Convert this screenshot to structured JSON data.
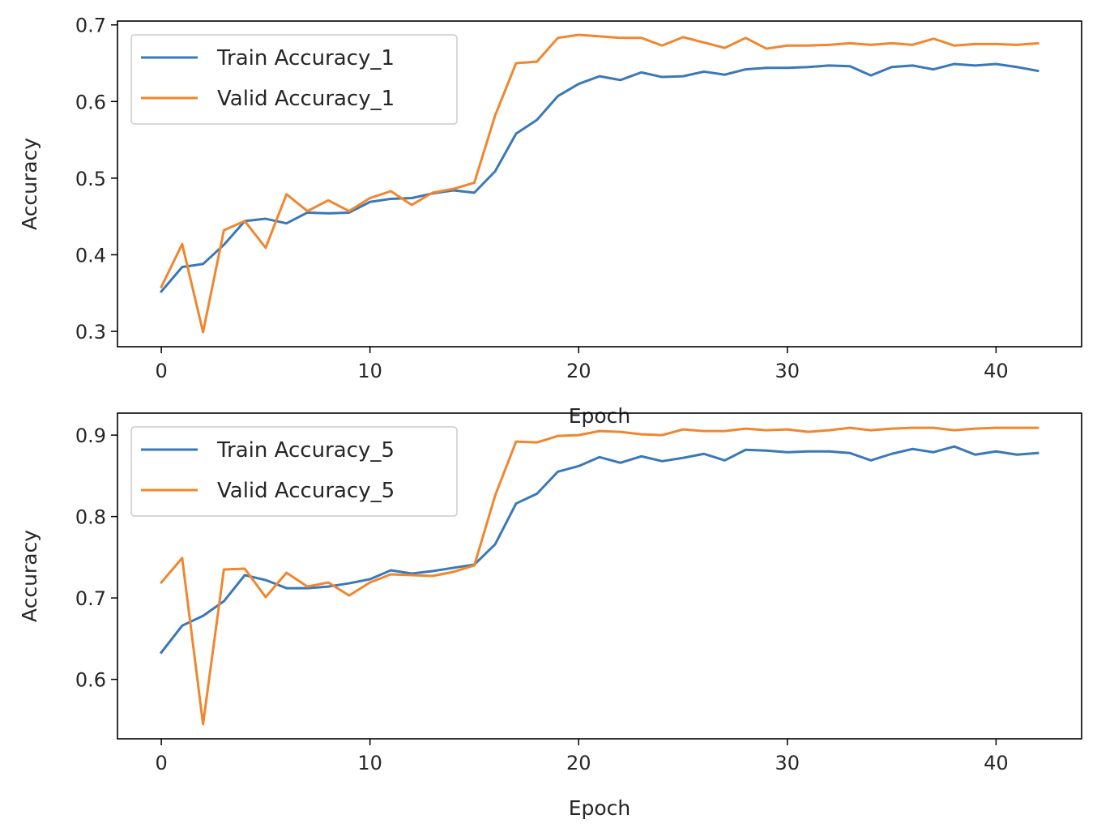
{
  "colors": {
    "train": "#3a78b8",
    "valid": "#f0862e",
    "axis": "#000000"
  },
  "chart_data": [
    {
      "type": "line",
      "xlabel": "Epoch",
      "ylabel": "Accuracy",
      "xlim": [
        -2.1,
        44.1
      ],
      "ylim": [
        0.28,
        0.705
      ],
      "xticks": [
        0,
        10,
        20,
        30,
        40
      ],
      "yticks": [
        0.3,
        0.4,
        0.5,
        0.6,
        0.7
      ],
      "tick_labels_x": [
        "0",
        "10",
        "20",
        "30",
        "40"
      ],
      "tick_labels_y": [
        "0.3",
        "0.4",
        "0.5",
        "0.6",
        "0.7"
      ],
      "grid": false,
      "legend_position": "top-left",
      "series": [
        {
          "name": "Train Accuracy_1",
          "color": "#3a78b8",
          "x": [
            0,
            1,
            2,
            3,
            4,
            5,
            6,
            7,
            8,
            9,
            10,
            11,
            12,
            13,
            14,
            15,
            16,
            17,
            18,
            19,
            20,
            21,
            22,
            23,
            24,
            25,
            26,
            27,
            28,
            29,
            30,
            31,
            32,
            33,
            34,
            35,
            36,
            37,
            38,
            39,
            40,
            41,
            42
          ],
          "values": [
            0.352,
            0.384,
            0.388,
            0.413,
            0.444,
            0.447,
            0.441,
            0.455,
            0.454,
            0.455,
            0.469,
            0.473,
            0.474,
            0.48,
            0.484,
            0.481,
            0.509,
            0.558,
            0.576,
            0.607,
            0.623,
            0.633,
            0.628,
            0.638,
            0.632,
            0.633,
            0.639,
            0.635,
            0.642,
            0.644,
            0.644,
            0.645,
            0.647,
            0.646,
            0.634,
            0.645,
            0.647,
            0.642,
            0.649,
            0.647,
            0.649,
            0.645,
            0.64
          ]
        },
        {
          "name": "Valid Accuracy_1",
          "color": "#f0862e",
          "x": [
            0,
            1,
            2,
            3,
            4,
            5,
            6,
            7,
            8,
            9,
            10,
            11,
            12,
            13,
            14,
            15,
            16,
            17,
            18,
            19,
            20,
            21,
            22,
            23,
            24,
            25,
            26,
            27,
            28,
            29,
            30,
            31,
            32,
            33,
            34,
            35,
            36,
            37,
            38,
            39,
            40,
            41,
            42
          ],
          "values": [
            0.358,
            0.414,
            0.299,
            0.432,
            0.444,
            0.409,
            0.479,
            0.457,
            0.471,
            0.457,
            0.474,
            0.483,
            0.465,
            0.481,
            0.486,
            0.494,
            0.582,
            0.65,
            0.652,
            0.683,
            0.687,
            0.685,
            0.683,
            0.683,
            0.673,
            0.684,
            0.677,
            0.67,
            0.683,
            0.669,
            0.673,
            0.673,
            0.674,
            0.676,
            0.674,
            0.676,
            0.674,
            0.682,
            0.673,
            0.675,
            0.675,
            0.674,
            0.676
          ]
        }
      ]
    },
    {
      "type": "line",
      "xlabel": "Epoch",
      "ylabel": "Accuracy",
      "xlim": [
        -2.1,
        44.1
      ],
      "ylim": [
        0.527,
        0.927
      ],
      "xticks": [
        0,
        10,
        20,
        30,
        40
      ],
      "yticks": [
        0.6,
        0.7,
        0.8,
        0.9
      ],
      "tick_labels_x": [
        "0",
        "10",
        "20",
        "30",
        "40"
      ],
      "tick_labels_y": [
        "0.6",
        "0.7",
        "0.8",
        "0.9"
      ],
      "grid": false,
      "legend_position": "top-left",
      "series": [
        {
          "name": "Train Accuracy_5",
          "color": "#3a78b8",
          "x": [
            0,
            1,
            2,
            3,
            4,
            5,
            6,
            7,
            8,
            9,
            10,
            11,
            12,
            13,
            14,
            15,
            16,
            17,
            18,
            19,
            20,
            21,
            22,
            23,
            24,
            25,
            26,
            27,
            28,
            29,
            30,
            31,
            32,
            33,
            34,
            35,
            36,
            37,
            38,
            39,
            40,
            41,
            42
          ],
          "values": [
            0.633,
            0.666,
            0.678,
            0.696,
            0.728,
            0.722,
            0.712,
            0.712,
            0.714,
            0.718,
            0.723,
            0.734,
            0.73,
            0.733,
            0.737,
            0.741,
            0.766,
            0.816,
            0.828,
            0.855,
            0.862,
            0.873,
            0.866,
            0.874,
            0.868,
            0.872,
            0.877,
            0.869,
            0.882,
            0.881,
            0.879,
            0.88,
            0.88,
            0.878,
            0.869,
            0.877,
            0.883,
            0.879,
            0.886,
            0.876,
            0.88,
            0.876,
            0.878
          ]
        },
        {
          "name": "Valid Accuracy_5",
          "color": "#f0862e",
          "x": [
            0,
            1,
            2,
            3,
            4,
            5,
            6,
            7,
            8,
            9,
            10,
            11,
            12,
            13,
            14,
            15,
            16,
            17,
            18,
            19,
            20,
            21,
            22,
            23,
            24,
            25,
            26,
            27,
            28,
            29,
            30,
            31,
            32,
            33,
            34,
            35,
            36,
            37,
            38,
            39,
            40,
            41,
            42
          ],
          "values": [
            0.719,
            0.749,
            0.545,
            0.735,
            0.736,
            0.701,
            0.731,
            0.714,
            0.719,
            0.703,
            0.719,
            0.729,
            0.728,
            0.727,
            0.732,
            0.74,
            0.826,
            0.892,
            0.891,
            0.899,
            0.9,
            0.905,
            0.904,
            0.901,
            0.9,
            0.907,
            0.905,
            0.905,
            0.908,
            0.906,
            0.907,
            0.904,
            0.906,
            0.909,
            0.906,
            0.908,
            0.909,
            0.909,
            0.906,
            0.908,
            0.909,
            0.909,
            0.909
          ]
        }
      ]
    }
  ]
}
